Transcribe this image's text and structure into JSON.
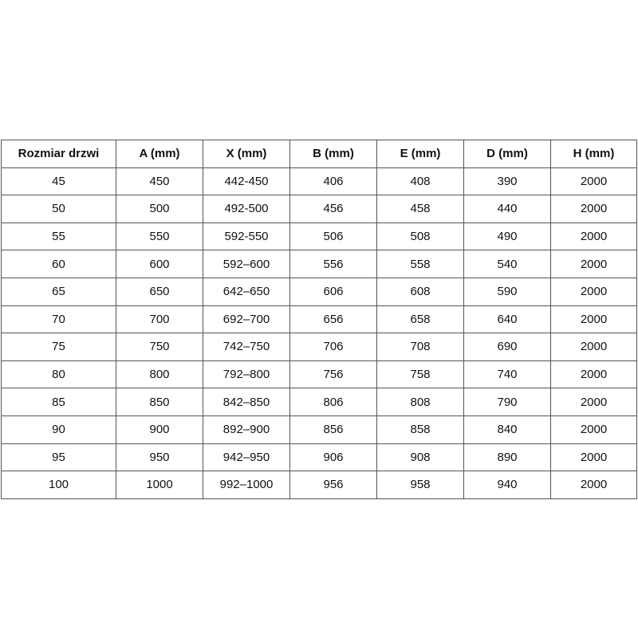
{
  "table": {
    "headers": [
      "Rozmiar drzwi",
      "A (mm)",
      "X (mm)",
      "B (mm)",
      "E (mm)",
      "D (mm)",
      "H (mm)"
    ],
    "rows": [
      [
        "45",
        "450",
        "442-450",
        "406",
        "408",
        "390",
        "2000"
      ],
      [
        "50",
        "500",
        "492-500",
        "456",
        "458",
        "440",
        "2000"
      ],
      [
        "55",
        "550",
        "592-550",
        "506",
        "508",
        "490",
        "2000"
      ],
      [
        "60",
        "600",
        "592–600",
        "556",
        "558",
        "540",
        "2000"
      ],
      [
        "65",
        "650",
        "642–650",
        "606",
        "608",
        "590",
        "2000"
      ],
      [
        "70",
        "700",
        "692–700",
        "656",
        "658",
        "640",
        "2000"
      ],
      [
        "75",
        "750",
        "742–750",
        "706",
        "708",
        "690",
        "2000"
      ],
      [
        "80",
        "800",
        "792–800",
        "756",
        "758",
        "740",
        "2000"
      ],
      [
        "85",
        "850",
        "842–850",
        "806",
        "808",
        "790",
        "2000"
      ],
      [
        "90",
        "900",
        "892–900",
        "856",
        "858",
        "840",
        "2000"
      ],
      [
        "95",
        "950",
        "942–950",
        "906",
        "908",
        "890",
        "2000"
      ],
      [
        "100",
        "1000",
        "992–1000",
        "956",
        "958",
        "940",
        "2000"
      ]
    ]
  }
}
